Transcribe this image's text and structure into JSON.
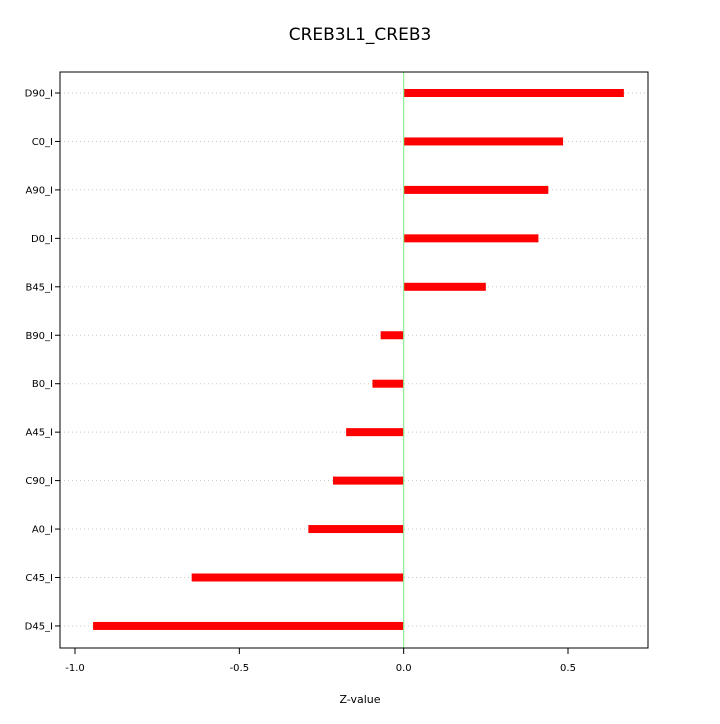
{
  "chart_data": {
    "type": "bar",
    "orientation": "horizontal",
    "title": "CREB3L1_CREB3",
    "xlabel": "Z-value",
    "ylabel": "",
    "xlim": [
      -1.0,
      0.75
    ],
    "x_ticks": [
      -1.0,
      -0.5,
      0.0,
      0.5
    ],
    "x_tick_labels": [
      "-1.0",
      "-0.5",
      "0.0",
      "0.5"
    ],
    "categories": [
      "D90_I",
      "C0_I",
      "A90_I",
      "D0_I",
      "B45_I",
      "B90_I",
      "B0_I",
      "A45_I",
      "C90_I",
      "A0_I",
      "C45_I",
      "D45_I"
    ],
    "values": [
      0.67,
      0.485,
      0.44,
      0.41,
      0.25,
      -0.07,
      -0.095,
      -0.175,
      -0.215,
      -0.29,
      -0.645,
      -0.945
    ],
    "bar_color": "#ff0000",
    "zero_line_color": "#90ee90",
    "grid": "horizontal-dotted",
    "legend": "none"
  }
}
